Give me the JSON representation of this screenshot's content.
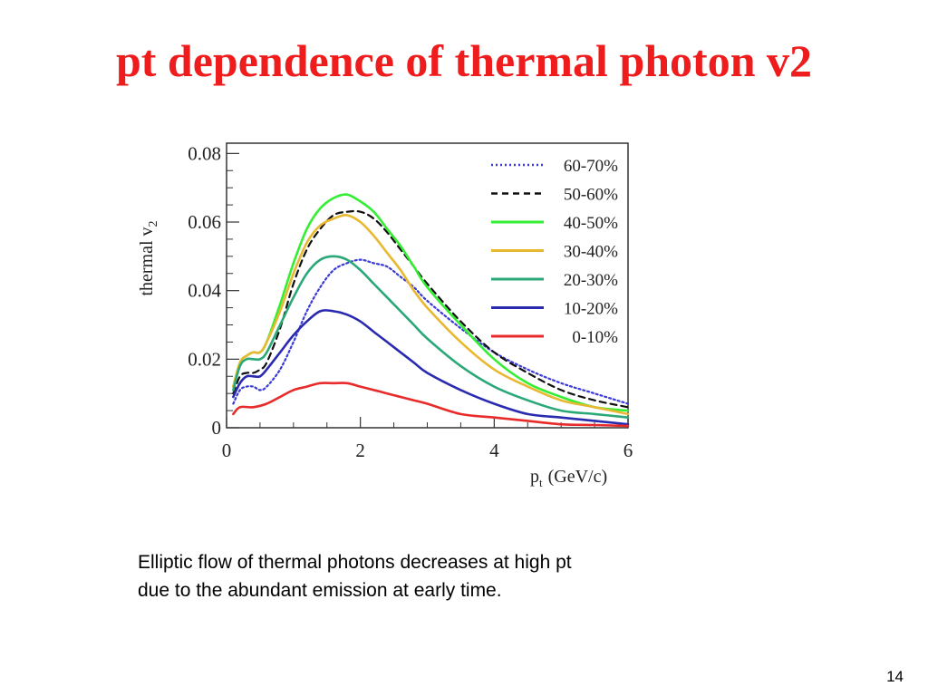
{
  "slide": {
    "title": "pt dependence of thermal photon v2",
    "caption_lines": [
      "Elliptic flow of thermal photons decreases at high pt",
      "due to the abundant emission at early time."
    ],
    "page_number": "14"
  },
  "chart_data": {
    "type": "line",
    "title": "",
    "xlabel": "p_t (GeV/c)",
    "xlabel_main": "p",
    "xlabel_sub": "t",
    "xlabel_unit": "(GeV/c)",
    "ylabel": "thermal v_2",
    "ylabel_main": "thermal v",
    "ylabel_sub": "2",
    "xlim": [
      0,
      6
    ],
    "ylim": [
      0,
      0.083
    ],
    "xticks": [
      {
        "value": 0,
        "label": "0"
      },
      {
        "value": 2,
        "label": "2"
      },
      {
        "value": 4,
        "label": "4"
      },
      {
        "value": 6,
        "label": "6"
      }
    ],
    "yticks": [
      {
        "value": 0,
        "label": "0"
      },
      {
        "value": 0.02,
        "label": "0.02"
      },
      {
        "value": 0.04,
        "label": "0.04"
      },
      {
        "value": 0.06,
        "label": "0.06"
      },
      {
        "value": 0.08,
        "label": "0.08"
      }
    ],
    "grid": false,
    "legend_position": "top-right",
    "series": [
      {
        "name": "60-70%",
        "color": "#3a3ad6",
        "dash": "dotted",
        "points": [
          [
            0.1,
            0.007
          ],
          [
            0.2,
            0.011
          ],
          [
            0.3,
            0.012
          ],
          [
            0.4,
            0.012
          ],
          [
            0.5,
            0.011
          ],
          [
            0.6,
            0.012
          ],
          [
            0.8,
            0.017
          ],
          [
            1.0,
            0.025
          ],
          [
            1.2,
            0.034
          ],
          [
            1.4,
            0.041
          ],
          [
            1.6,
            0.046
          ],
          [
            1.8,
            0.048
          ],
          [
            2.0,
            0.049
          ],
          [
            2.2,
            0.048
          ],
          [
            2.4,
            0.047
          ],
          [
            2.6,
            0.044
          ],
          [
            2.8,
            0.041
          ],
          [
            3.0,
            0.037
          ],
          [
            3.5,
            0.029
          ],
          [
            4.0,
            0.022
          ],
          [
            4.5,
            0.017
          ],
          [
            5.0,
            0.013
          ],
          [
            5.5,
            0.01
          ],
          [
            6.0,
            0.007
          ]
        ]
      },
      {
        "name": "50-60%",
        "color": "#111111",
        "dash": "dashed",
        "points": [
          [
            0.1,
            0.01
          ],
          [
            0.2,
            0.015
          ],
          [
            0.3,
            0.016
          ],
          [
            0.4,
            0.016
          ],
          [
            0.5,
            0.017
          ],
          [
            0.6,
            0.019
          ],
          [
            0.8,
            0.029
          ],
          [
            1.0,
            0.042
          ],
          [
            1.2,
            0.052
          ],
          [
            1.4,
            0.058
          ],
          [
            1.6,
            0.062
          ],
          [
            1.8,
            0.063
          ],
          [
            2.0,
            0.063
          ],
          [
            2.2,
            0.061
          ],
          [
            2.4,
            0.057
          ],
          [
            2.6,
            0.052
          ],
          [
            2.8,
            0.047
          ],
          [
            3.0,
            0.042
          ],
          [
            3.5,
            0.031
          ],
          [
            4.0,
            0.022
          ],
          [
            4.5,
            0.016
          ],
          [
            5.0,
            0.011
          ],
          [
            5.5,
            0.008
          ],
          [
            6.0,
            0.006
          ]
        ]
      },
      {
        "name": "40-50%",
        "color": "#33ee33",
        "dash": "solid",
        "points": [
          [
            0.1,
            0.012
          ],
          [
            0.2,
            0.019
          ],
          [
            0.3,
            0.021
          ],
          [
            0.4,
            0.022
          ],
          [
            0.5,
            0.022
          ],
          [
            0.6,
            0.025
          ],
          [
            0.8,
            0.036
          ],
          [
            1.0,
            0.048
          ],
          [
            1.2,
            0.058
          ],
          [
            1.4,
            0.064
          ],
          [
            1.6,
            0.067
          ],
          [
            1.8,
            0.068
          ],
          [
            2.0,
            0.066
          ],
          [
            2.2,
            0.063
          ],
          [
            2.4,
            0.058
          ],
          [
            2.6,
            0.053
          ],
          [
            2.8,
            0.047
          ],
          [
            3.0,
            0.041
          ],
          [
            3.5,
            0.03
          ],
          [
            4.0,
            0.02
          ],
          [
            4.5,
            0.013
          ],
          [
            5.0,
            0.009
          ],
          [
            5.5,
            0.006
          ],
          [
            6.0,
            0.005
          ]
        ]
      },
      {
        "name": "30-40%",
        "color": "#e8b830",
        "dash": "solid",
        "points": [
          [
            0.1,
            0.012
          ],
          [
            0.2,
            0.019
          ],
          [
            0.3,
            0.021
          ],
          [
            0.4,
            0.022
          ],
          [
            0.5,
            0.022
          ],
          [
            0.6,
            0.025
          ],
          [
            0.8,
            0.034
          ],
          [
            1.0,
            0.045
          ],
          [
            1.2,
            0.054
          ],
          [
            1.4,
            0.059
          ],
          [
            1.6,
            0.061
          ],
          [
            1.8,
            0.062
          ],
          [
            2.0,
            0.06
          ],
          [
            2.2,
            0.056
          ],
          [
            2.4,
            0.051
          ],
          [
            2.6,
            0.046
          ],
          [
            2.8,
            0.04
          ],
          [
            3.0,
            0.035
          ],
          [
            3.5,
            0.025
          ],
          [
            4.0,
            0.017
          ],
          [
            4.5,
            0.012
          ],
          [
            5.0,
            0.008
          ],
          [
            5.5,
            0.006
          ],
          [
            6.0,
            0.004
          ]
        ]
      },
      {
        "name": "20-30%",
        "color": "#2aa878",
        "dash": "solid",
        "points": [
          [
            0.1,
            0.011
          ],
          [
            0.2,
            0.018
          ],
          [
            0.3,
            0.02
          ],
          [
            0.4,
            0.02
          ],
          [
            0.5,
            0.02
          ],
          [
            0.6,
            0.022
          ],
          [
            0.8,
            0.03
          ],
          [
            1.0,
            0.038
          ],
          [
            1.2,
            0.045
          ],
          [
            1.4,
            0.049
          ],
          [
            1.6,
            0.05
          ],
          [
            1.8,
            0.049
          ],
          [
            2.0,
            0.046
          ],
          [
            2.2,
            0.042
          ],
          [
            2.4,
            0.038
          ],
          [
            2.6,
            0.034
          ],
          [
            2.8,
            0.03
          ],
          [
            3.0,
            0.026
          ],
          [
            3.5,
            0.018
          ],
          [
            4.0,
            0.012
          ],
          [
            4.5,
            0.008
          ],
          [
            5.0,
            0.005
          ],
          [
            5.5,
            0.004
          ],
          [
            6.0,
            0.003
          ]
        ]
      },
      {
        "name": "10-20%",
        "color": "#2a2ab0",
        "dash": "solid",
        "points": [
          [
            0.1,
            0.009
          ],
          [
            0.2,
            0.013
          ],
          [
            0.3,
            0.015
          ],
          [
            0.4,
            0.015
          ],
          [
            0.5,
            0.015
          ],
          [
            0.6,
            0.017
          ],
          [
            0.8,
            0.022
          ],
          [
            1.0,
            0.027
          ],
          [
            1.2,
            0.031
          ],
          [
            1.4,
            0.034
          ],
          [
            1.6,
            0.034
          ],
          [
            1.8,
            0.033
          ],
          [
            2.0,
            0.031
          ],
          [
            2.2,
            0.028
          ],
          [
            2.4,
            0.025
          ],
          [
            2.6,
            0.022
          ],
          [
            2.8,
            0.019
          ],
          [
            3.0,
            0.016
          ],
          [
            3.5,
            0.011
          ],
          [
            4.0,
            0.007
          ],
          [
            4.5,
            0.004
          ],
          [
            5.0,
            0.003
          ],
          [
            5.5,
            0.002
          ],
          [
            6.0,
            0.001
          ]
        ]
      },
      {
        "name": "0-10%",
        "color": "#e82a2a",
        "dash": "solid",
        "points": [
          [
            0.1,
            0.004
          ],
          [
            0.2,
            0.006
          ],
          [
            0.4,
            0.006
          ],
          [
            0.6,
            0.007
          ],
          [
            0.8,
            0.009
          ],
          [
            1.0,
            0.011
          ],
          [
            1.2,
            0.012
          ],
          [
            1.4,
            0.013
          ],
          [
            1.6,
            0.013
          ],
          [
            1.8,
            0.013
          ],
          [
            2.0,
            0.012
          ],
          [
            2.2,
            0.011
          ],
          [
            2.4,
            0.01
          ],
          [
            2.6,
            0.009
          ],
          [
            2.8,
            0.008
          ],
          [
            3.0,
            0.007
          ],
          [
            3.5,
            0.004
          ],
          [
            4.0,
            0.003
          ],
          [
            4.5,
            0.002
          ],
          [
            5.0,
            0.001
          ],
          [
            5.5,
            0.0008
          ],
          [
            6.0,
            0.0005
          ]
        ]
      }
    ]
  }
}
